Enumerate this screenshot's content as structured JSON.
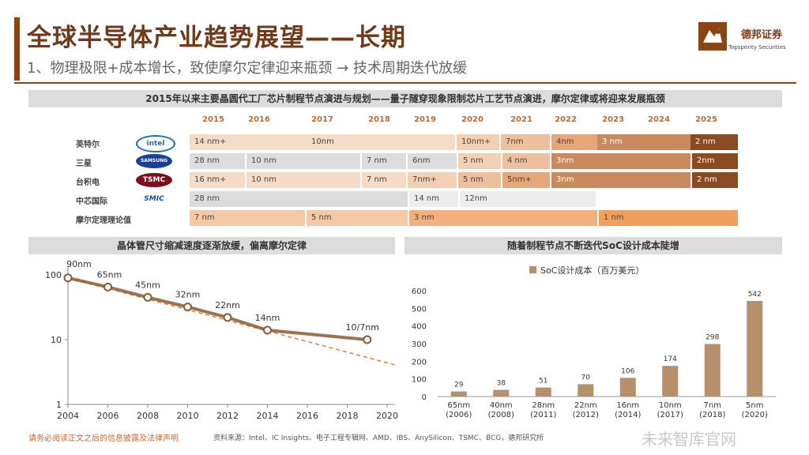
{
  "header": {
    "title": "全球半导体产业趋势展望——长期",
    "subtitle": "1、物理极限+成本增长，致使摩尔定律迎来瓶颈 → 技术周期迭代放缓",
    "logo_name": "德邦证券",
    "logo_sub": "Topsperity Securities"
  },
  "table": {
    "heading": "2015年以来主要晶圆代工厂芯片制程节点演进与规划——量子隧穿现象限制芯片工艺节点演进，摩尔定律或将迎来发展瓶颈",
    "years": [
      "2015",
      "2016",
      "2017",
      "2018",
      "2019",
      "2020",
      "2021",
      "2022",
      "2023",
      "2024",
      "2025"
    ],
    "rows": [
      {
        "label": "英特尔",
        "brand": "intel",
        "segments": [
          "14 nm+",
          "10nm",
          "10nm+",
          "7nm",
          "4nm",
          "3 nm",
          "2 nm"
        ]
      },
      {
        "label": "三星",
        "brand": "SAMSUNG",
        "segments": [
          "28 nm",
          "10 nm",
          "7 nm",
          "6nm",
          "5 nm",
          "4 nm",
          "3nm",
          "2nm"
        ]
      },
      {
        "label": "台积电",
        "brand": "TSMC",
        "segments": [
          "16 nm+",
          "10 nm",
          "7 nm",
          "7nm+",
          "5 nm",
          "5nm+",
          "3nm",
          "2 nm"
        ]
      },
      {
        "label": "中芯国际",
        "brand": "SMIC",
        "segments": [
          "28 nm",
          "14 nm",
          "12nm"
        ]
      },
      {
        "label": "摩尔定理理论值",
        "brand": "",
        "segments": [
          "7 nm",
          "5 nm",
          "3 nm",
          "1 nm"
        ]
      }
    ]
  },
  "chart_data": [
    {
      "type": "line",
      "title": "晶体管尺寸缩减速度逐渐放缓，偏离摩尔定律",
      "x": [
        2004,
        2006,
        2008,
        2010,
        2012,
        2014,
        2016,
        2018,
        2020
      ],
      "yscale": "log",
      "ylim": [
        1,
        100
      ],
      "yticks": [
        "100",
        "10",
        "1"
      ],
      "xticks": [
        "2004",
        "2006",
        "2008",
        "2010",
        "2012",
        "2014",
        "2016",
        "2018",
        "2020"
      ],
      "series": [
        {
          "name": "actual",
          "points": [
            [
              2004,
              90
            ],
            [
              2006,
              65
            ],
            [
              2008,
              45
            ],
            [
              2010,
              32
            ],
            [
              2012,
              22
            ],
            [
              2014,
              14
            ],
            [
              2019,
              10
            ]
          ],
          "labels": [
            "90nm",
            "65nm",
            "45nm",
            "32nm",
            "22nm",
            "14nm",
            "10/7nm"
          ]
        },
        {
          "name": "moore-trend",
          "style": "dashed",
          "points": [
            [
              2004,
              90
            ],
            [
              2020.5,
              4
            ]
          ]
        }
      ]
    },
    {
      "type": "bar",
      "title": "随着制程节点不断迭代SoC设计成本陡增",
      "legend": "SoC设计成本（百万美元）",
      "categories": [
        "65nm\n(2006)",
        "40nm\n(2008)",
        "28nm\n(2011)",
        "22nm\n(2012)",
        "16nm\n(2014)",
        "10nm\n(2017)",
        "7nm\n(2018)",
        "5nm\n(2020)"
      ],
      "values": [
        29,
        38,
        51,
        70,
        106,
        174,
        298,
        542
      ],
      "ylim": [
        0,
        600
      ],
      "yticks": [
        0,
        100,
        200,
        300,
        400,
        500,
        600
      ]
    }
  ],
  "footer": {
    "disclaimer": "请务必阅读正文之后的信息披露及法律声明",
    "source": "资料来源：Intel、IC Insights、电子工程专辑网、AMD、IBS、AnySilicon、TSMC、BCG，德邦研究所",
    "watermark": "未来智库官网"
  },
  "colors": {
    "brand": "#8B4513",
    "accent": "#c06a30",
    "lineActual": "#8a5a33",
    "trend": "#e07b39",
    "bar": "#b5906b"
  }
}
